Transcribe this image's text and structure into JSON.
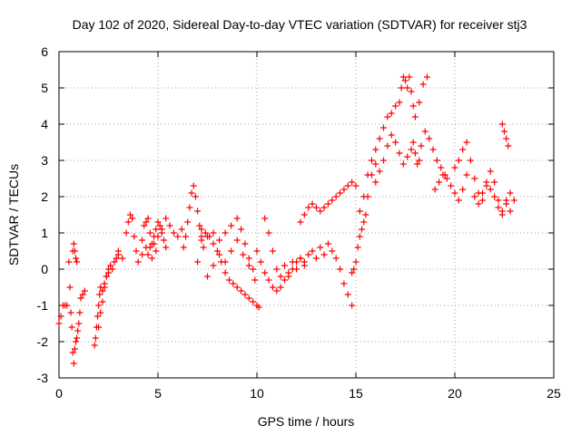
{
  "chart_data": {
    "type": "scatter",
    "title": "Day 102 of 2020, Sidereal Day-to-day VTEC variation (SDTVAR) for receiver stj3",
    "xlabel": "GPS time / hours",
    "ylabel": "SDTVAR / TECUs",
    "xlim": [
      0,
      25
    ],
    "ylim": [
      -3,
      6
    ],
    "x_ticks": [
      0,
      5,
      10,
      15,
      20,
      25
    ],
    "x_tick_labels": [
      "0",
      "5",
      "10",
      "15",
      "20",
      "25"
    ],
    "y_ticks": [
      -3,
      -2,
      -1,
      0,
      1,
      2,
      3,
      4,
      5,
      6
    ],
    "y_tick_labels": [
      "-3",
      "-2",
      "-1",
      "0",
      "1",
      "2",
      "3",
      "4",
      "5",
      "6"
    ],
    "grid": true,
    "marker": "+",
    "color": "#ff0000",
    "series": [
      {
        "name": "s1",
        "x": [
          0.0,
          0.1,
          0.2,
          0.3,
          0.4
        ],
        "y": [
          -1.5,
          -1.3,
          -1.0,
          -1.0,
          -1.0
        ]
      },
      {
        "name": "s2",
        "x": [
          0.5,
          0.55,
          0.6,
          0.65,
          0.7,
          0.75,
          0.8,
          0.85,
          0.9,
          0.95,
          1.0,
          1.05,
          1.1,
          1.2,
          1.3
        ],
        "y": [
          0.2,
          -0.5,
          -1.2,
          -1.6,
          -2.3,
          -2.6,
          -2.2,
          -2.0,
          -1.9,
          -1.7,
          -1.5,
          -1.2,
          -0.8,
          -0.7,
          -0.6
        ]
      },
      {
        "name": "s3",
        "x": [
          0.7,
          0.75,
          0.8,
          0.85,
          0.9
        ],
        "y": [
          0.5,
          0.7,
          0.5,
          0.3,
          0.2
        ]
      },
      {
        "name": "s4",
        "x": [
          1.8,
          1.85,
          1.9,
          1.95,
          2.0,
          2.05,
          2.1,
          2.2,
          2.3,
          2.4,
          2.5
        ],
        "y": [
          -2.1,
          -1.9,
          -1.6,
          -1.3,
          -1.0,
          -0.7,
          -0.5,
          -0.6,
          -0.4,
          -0.2,
          0.0
        ]
      },
      {
        "name": "s5",
        "x": [
          2.0,
          2.1,
          2.2,
          2.3,
          2.4,
          2.5,
          2.6,
          2.7,
          2.8,
          2.9,
          3.0
        ],
        "y": [
          -1.6,
          -1.2,
          -0.9,
          -0.5,
          -0.2,
          -0.1,
          0.1,
          0.0,
          0.2,
          0.3,
          0.4
        ]
      },
      {
        "name": "s6",
        "x": [
          3.0,
          3.2,
          3.4,
          3.5,
          3.6,
          3.7,
          3.8,
          3.9,
          4.0,
          4.2,
          4.4
        ],
        "y": [
          0.5,
          0.3,
          1.0,
          1.3,
          1.5,
          1.4,
          0.9,
          0.5,
          0.2,
          0.4,
          0.6
        ]
      },
      {
        "name": "s7",
        "x": [
          4.2,
          4.3,
          4.4,
          4.5,
          4.6,
          4.7,
          4.8,
          4.9,
          5.0,
          5.1,
          5.2,
          5.3,
          5.4
        ],
        "y": [
          0.8,
          1.2,
          1.3,
          1.4,
          1.0,
          0.7,
          0.9,
          1.1,
          1.3,
          1.2,
          1.0,
          0.8,
          0.6
        ]
      },
      {
        "name": "s8",
        "x": [
          4.5,
          4.6,
          4.7,
          4.8,
          4.9,
          5.0,
          5.2,
          5.4,
          5.6,
          5.8,
          6.0,
          6.2
        ],
        "y": [
          0.4,
          0.6,
          0.3,
          0.7,
          0.5,
          0.9,
          1.1,
          1.4,
          1.2,
          1.0,
          0.9,
          1.1
        ]
      },
      {
        "name": "s9",
        "x": [
          6.3,
          6.4,
          6.5,
          6.6,
          6.7,
          6.8,
          6.9,
          7.0,
          7.1,
          7.2,
          7.3
        ],
        "y": [
          0.6,
          0.9,
          1.3,
          1.7,
          2.1,
          2.3,
          2.0,
          1.6,
          1.2,
          0.9,
          0.6
        ]
      },
      {
        "name": "s10",
        "x": [
          7.0,
          7.2,
          7.4,
          7.6,
          7.8,
          8.0,
          8.2,
          8.4,
          8.6,
          8.8,
          9.0,
          9.2,
          9.4,
          9.6,
          9.8,
          10.0,
          10.1
        ],
        "y": [
          0.2,
          0.8,
          1.0,
          0.9,
          0.7,
          0.5,
          0.2,
          -0.1,
          -0.3,
          -0.4,
          -0.5,
          -0.6,
          -0.7,
          -0.8,
          -0.9,
          -1.0,
          -1.05
        ]
      },
      {
        "name": "s11",
        "x": [
          7.2,
          7.5,
          7.8,
          8.1,
          8.4,
          8.7,
          9.0,
          9.2,
          9.4,
          9.6,
          9.8
        ],
        "y": [
          1.1,
          0.9,
          1.0,
          0.8,
          1.0,
          1.2,
          1.4,
          1.1,
          0.7,
          0.3,
          0.0
        ]
      },
      {
        "name": "s12",
        "x": [
          7.5,
          7.8,
          8.1,
          8.4,
          8.7,
          9.0,
          9.3,
          9.6,
          9.9
        ],
        "y": [
          -0.2,
          0.1,
          0.4,
          0.2,
          0.5,
          0.8,
          0.4,
          0.1,
          -0.3
        ]
      },
      {
        "name": "s13",
        "x": [
          10.0,
          10.2,
          10.4,
          10.6,
          10.8,
          11.0,
          11.2,
          11.4,
          11.6,
          11.8,
          12.0
        ],
        "y": [
          0.5,
          0.2,
          -0.1,
          -0.3,
          -0.5,
          -0.6,
          -0.5,
          -0.3,
          -0.2,
          0.0,
          0.2
        ]
      },
      {
        "name": "s14",
        "x": [
          10.4,
          10.6,
          10.8,
          11.0,
          11.2,
          11.4,
          11.6,
          11.8,
          12.0,
          12.2,
          12.4
        ],
        "y": [
          1.4,
          1.0,
          0.5,
          0.0,
          -0.2,
          0.1,
          -0.1,
          0.2,
          0.0,
          0.3,
          0.1
        ]
      },
      {
        "name": "s15",
        "x": [
          12.2,
          12.4,
          12.6,
          12.8,
          13.0,
          13.2,
          13.4,
          13.6,
          13.8,
          14.0,
          14.2,
          14.4,
          14.6,
          14.8
        ],
        "y": [
          0.3,
          0.2,
          0.4,
          0.5,
          0.3,
          0.6,
          0.4,
          0.7,
          0.5,
          0.3,
          0.0,
          -0.4,
          -0.7,
          -1.0
        ]
      },
      {
        "name": "s16",
        "x": [
          12.2,
          12.4,
          12.6,
          12.8,
          13.0,
          13.2,
          13.4,
          13.6,
          13.8,
          14.0,
          14.2,
          14.4,
          14.6,
          14.8,
          15.0
        ],
        "y": [
          1.3,
          1.5,
          1.7,
          1.8,
          1.7,
          1.6,
          1.7,
          1.8,
          1.9,
          2.0,
          2.1,
          2.2,
          2.3,
          2.4,
          2.3
        ]
      },
      {
        "name": "s17",
        "x": [
          14.8,
          14.9,
          15.0,
          15.1,
          15.2,
          15.3,
          15.4,
          15.5,
          15.6,
          15.8,
          16.0
        ],
        "y": [
          -0.1,
          0.0,
          0.2,
          0.6,
          0.9,
          1.1,
          1.3,
          1.5,
          2.0,
          2.6,
          2.9
        ]
      },
      {
        "name": "s18",
        "x": [
          15.2,
          15.4,
          15.6,
          15.8,
          16.0,
          16.2,
          16.4,
          16.6,
          16.8,
          17.0
        ],
        "y": [
          1.6,
          2.0,
          2.6,
          3.0,
          3.3,
          3.6,
          3.9,
          4.2,
          4.3,
          4.5
        ]
      },
      {
        "name": "s19",
        "x": [
          16.0,
          16.2,
          16.4,
          16.6,
          16.8,
          17.0,
          17.2,
          17.4,
          17.6,
          17.8
        ],
        "y": [
          2.4,
          2.7,
          3.0,
          3.4,
          3.7,
          3.5,
          3.2,
          2.9,
          3.1,
          3.3
        ]
      },
      {
        "name": "s20",
        "x": [
          17.2,
          17.3,
          17.4,
          17.5,
          17.6,
          17.7,
          17.8,
          17.9,
          18.0,
          18.2,
          18.4,
          18.6
        ],
        "y": [
          4.6,
          5.0,
          5.3,
          5.2,
          5.0,
          5.3,
          4.9,
          4.5,
          4.2,
          4.6,
          5.1,
          5.3
        ]
      },
      {
        "name": "s21",
        "x": [
          17.9,
          18.0,
          18.1,
          18.2,
          18.3,
          18.5,
          18.7,
          18.9,
          19.1,
          19.3,
          19.5
        ],
        "y": [
          3.5,
          3.2,
          2.9,
          3.0,
          3.4,
          3.8,
          3.6,
          3.3,
          3.0,
          2.8,
          2.6
        ]
      },
      {
        "name": "s22",
        "x": [
          19.0,
          19.2,
          19.4,
          19.6,
          19.8,
          20.0,
          20.2,
          20.4,
          20.6
        ],
        "y": [
          2.2,
          2.4,
          2.6,
          2.5,
          2.3,
          2.1,
          1.9,
          2.2,
          2.6
        ]
      },
      {
        "name": "s23",
        "x": [
          20.0,
          20.2,
          20.4,
          20.6,
          20.8,
          21.0,
          21.2,
          21.4,
          21.6,
          21.8,
          22.0,
          22.2,
          22.4,
          22.6,
          22.8
        ],
        "y": [
          2.8,
          3.0,
          3.3,
          3.5,
          3.0,
          2.5,
          2.1,
          1.9,
          2.3,
          2.7,
          2.4,
          1.9,
          1.6,
          1.9,
          2.1
        ]
      },
      {
        "name": "s24",
        "x": [
          21.0,
          21.2,
          21.4,
          21.6,
          21.8,
          22.0,
          22.2,
          22.4,
          22.6,
          22.8,
          23.0
        ],
        "y": [
          2.0,
          1.8,
          2.1,
          2.4,
          2.2,
          2.0,
          1.7,
          1.5,
          1.8,
          1.6,
          1.9
        ]
      },
      {
        "name": "s25",
        "x": [
          22.4,
          22.5,
          22.6,
          22.7
        ],
        "y": [
          4.0,
          3.8,
          3.6,
          3.4
        ]
      }
    ]
  }
}
